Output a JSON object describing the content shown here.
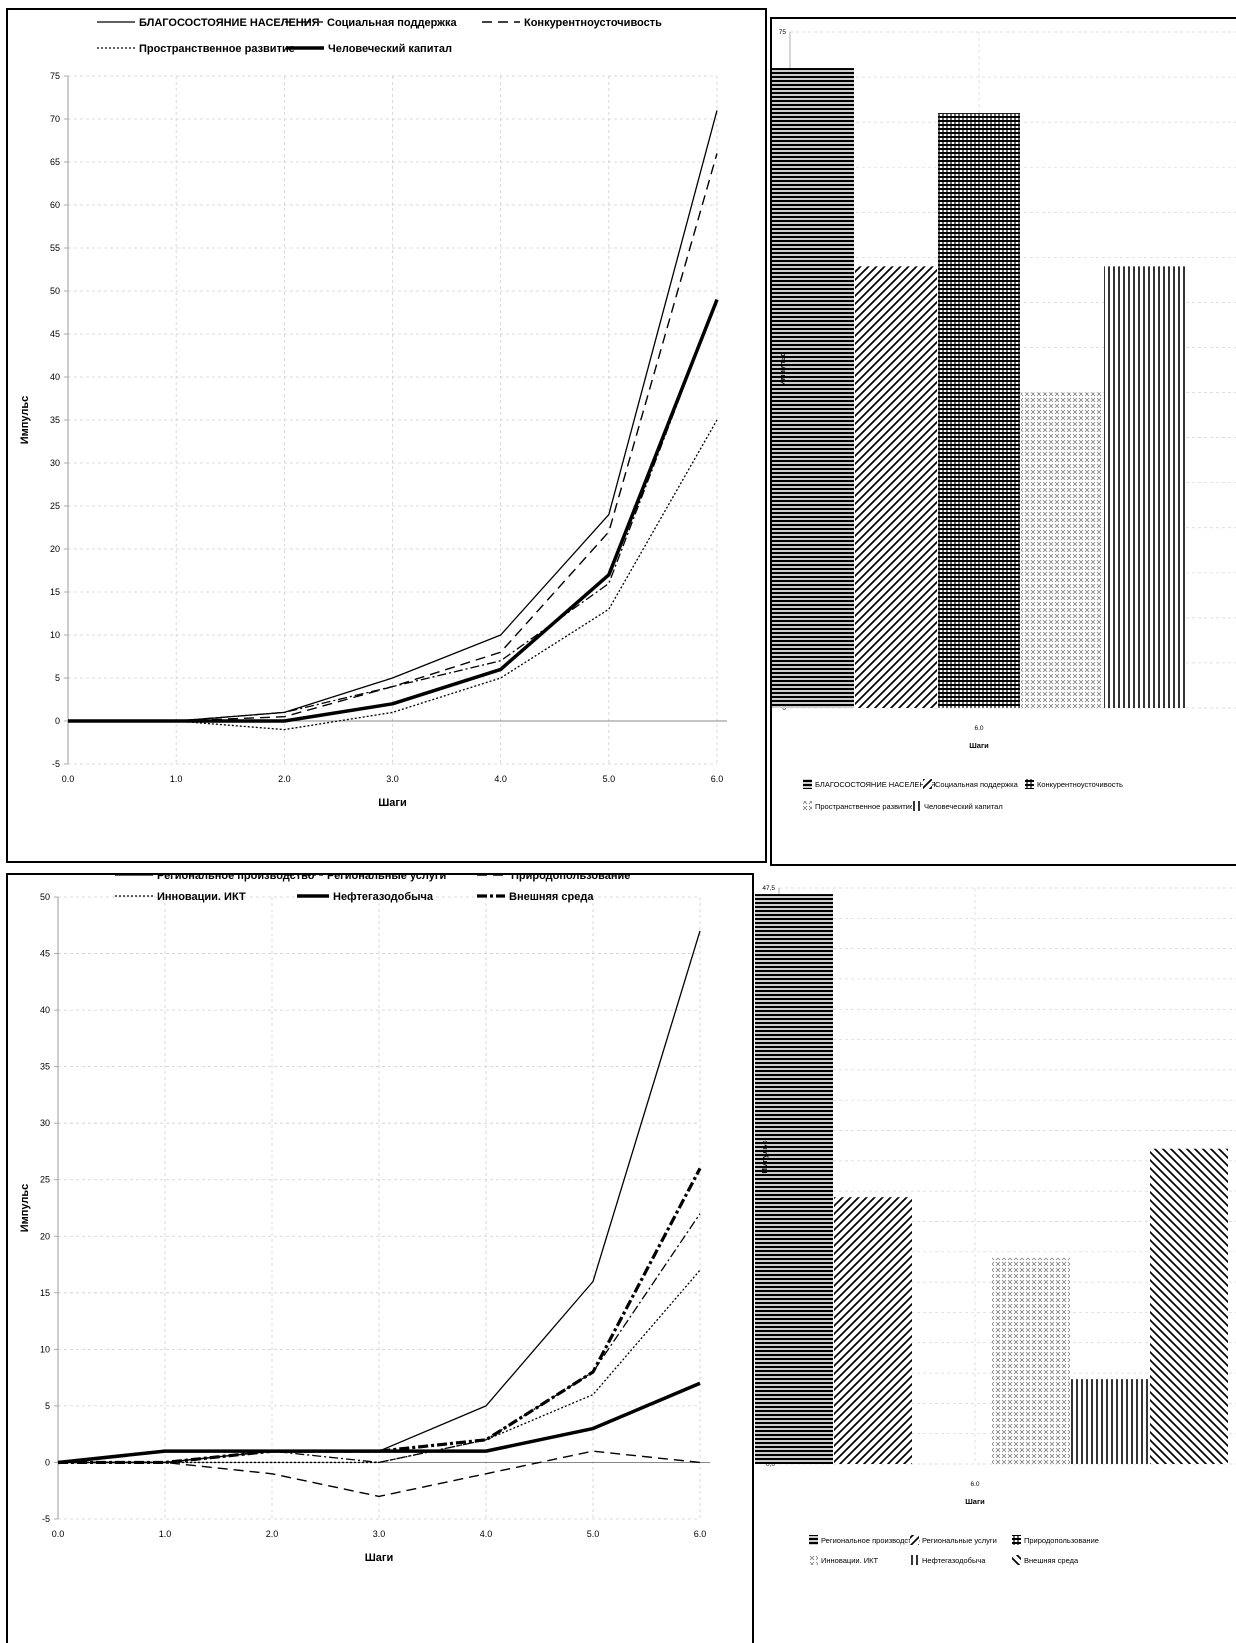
{
  "chart_data": [
    {
      "type": "line",
      "x": [
        0.0,
        1.0,
        2.0,
        3.0,
        4.0,
        5.0,
        6.0
      ],
      "x_tick_labels": [
        "0.0",
        "1.0",
        "2.0",
        "3.0",
        "4.0",
        "5.0",
        "6.0"
      ],
      "xlabel": "Шаги",
      "ylabel": "Импульс",
      "ylim": [
        -5,
        75
      ],
      "y_ticks": [
        -5,
        0,
        5,
        10,
        15,
        20,
        25,
        30,
        35,
        40,
        45,
        50,
        55,
        60,
        65,
        70,
        75
      ],
      "legend_position": "top",
      "grid": true,
      "series": [
        {
          "name": "БЛАГОСОСТОЯНИЕ НАСЕЛЕНИЯ",
          "style": "solid",
          "values": [
            0,
            0,
            1,
            5,
            10,
            24,
            71
          ]
        },
        {
          "name": "Социальная поддержка",
          "style": "dashdot",
          "values": [
            0,
            0,
            1,
            4,
            7,
            16,
            49
          ]
        },
        {
          "name": "Конкурентноусточивость",
          "style": "dashed",
          "values": [
            0,
            0,
            0.5,
            4,
            8,
            22,
            66
          ]
        },
        {
          "name": "Пространственное развитие",
          "style": "dotted",
          "values": [
            0,
            0,
            -1,
            1,
            5,
            13,
            35
          ]
        },
        {
          "name": "Человеческий капитал",
          "style": "bold",
          "values": [
            0,
            0,
            0,
            2,
            6,
            17,
            49
          ]
        }
      ]
    },
    {
      "type": "bar",
      "categories": [
        "6.0"
      ],
      "xlabel": "Шаги",
      "ylabel": "Импульс",
      "ylim": [
        0,
        75
      ],
      "y_ticks": [
        0,
        5,
        10,
        15,
        20,
        25,
        30,
        35,
        40,
        45,
        50,
        55,
        60,
        65,
        70,
        75
      ],
      "legend_position": "bottom",
      "grid": true,
      "series": [
        {
          "name": "БЛАГОСОСТОЯНИЕ НАСЕЛЕНИЯ",
          "pattern": "hlines",
          "values": [
            71
          ]
        },
        {
          "name": "Социальная поддержка",
          "pattern": "diag",
          "values": [
            49
          ]
        },
        {
          "name": "Конкурентноусточивость",
          "pattern": "grid",
          "values": [
            66
          ]
        },
        {
          "name": "Пространственное развитие",
          "pattern": "xs",
          "values": [
            35
          ]
        },
        {
          "name": "Человеческий капитал",
          "pattern": "vlines",
          "values": [
            49
          ]
        }
      ]
    },
    {
      "type": "line",
      "x": [
        0.0,
        1.0,
        2.0,
        3.0,
        4.0,
        5.0,
        6.0
      ],
      "x_tick_labels": [
        "0.0",
        "1.0",
        "2.0",
        "3.0",
        "4.0",
        "5.0",
        "6.0"
      ],
      "xlabel": "Шаги",
      "ylabel": "Импульс",
      "ylim": [
        -5,
        50
      ],
      "y_ticks": [
        -5,
        0,
        5,
        10,
        15,
        20,
        25,
        30,
        35,
        40,
        45,
        50
      ],
      "legend_position": "top",
      "grid": true,
      "series": [
        {
          "name": "Региональное производство",
          "style": "solid",
          "values": [
            0,
            0,
            1,
            1,
            5,
            16,
            47
          ]
        },
        {
          "name": "Региональные услуги",
          "style": "dashdot",
          "values": [
            0,
            0,
            1,
            0,
            2,
            8,
            22
          ]
        },
        {
          "name": "Природопользование",
          "style": "dashed",
          "values": [
            0,
            0,
            -1,
            -3,
            -1,
            1,
            0
          ]
        },
        {
          "name": "Инновации. ИКТ",
          "style": "dotted",
          "values": [
            0,
            0,
            0,
            0,
            2,
            6,
            17
          ]
        },
        {
          "name": "Нефтегазодобыча",
          "style": "bold",
          "values": [
            0,
            1,
            1,
            1,
            1,
            3,
            7
          ]
        },
        {
          "name": "Внешняя среда",
          "style": "bold-dashdot",
          "values": [
            0,
            0,
            1,
            1,
            2,
            8,
            26
          ]
        }
      ]
    },
    {
      "type": "bar",
      "categories": [
        "6.0"
      ],
      "xlabel": "Шаги",
      "ylabel": "Импульс",
      "ylim": [
        0,
        47.5
      ],
      "y_ticks": [
        0,
        2.5,
        5,
        7.5,
        10,
        12.5,
        15,
        17.5,
        20,
        22.5,
        25,
        27.5,
        30,
        32.5,
        35,
        37.5,
        40,
        42.5,
        45,
        47.5
      ],
      "y_tick_labels": [
        "0,0",
        "2,5",
        "5,0",
        "7,5",
        "10,0",
        "12,5",
        "15,0",
        "17,5",
        "20,0",
        "22,5",
        "25,0",
        "27,5",
        "30,0",
        "32,5",
        "35,0",
        "37,5",
        "40,0",
        "42,5",
        "45,0",
        "47,5"
      ],
      "legend_position": "bottom",
      "grid": true,
      "legend_names": [
        "Региональное производство",
        "Региональные услуги",
        "Природопользование",
        "Инновации. ИКТ",
        "Нефтегазодобыча",
        "Внешняя среда"
      ],
      "legend_patterns": [
        "hlines",
        "diag",
        "grid",
        "xs",
        "vlines",
        "diag2"
      ],
      "series": [
        {
          "name": "Региональное производство",
          "pattern": "hlines",
          "values": [
            47
          ]
        },
        {
          "name": "Региональные услуги",
          "pattern": "diag",
          "values": [
            22
          ]
        },
        {
          "name": "Природопользование",
          "pattern": "grid",
          "values": [
            0
          ]
        },
        {
          "name": "Инновации. ИКТ",
          "pattern": "xs",
          "values": [
            17
          ]
        },
        {
          "name": "Нефтегазодобыча",
          "pattern": "vlines",
          "values": [
            7
          ]
        },
        {
          "name": "Внешняя среда",
          "pattern": "diag2",
          "values": [
            26
          ]
        }
      ]
    }
  ]
}
